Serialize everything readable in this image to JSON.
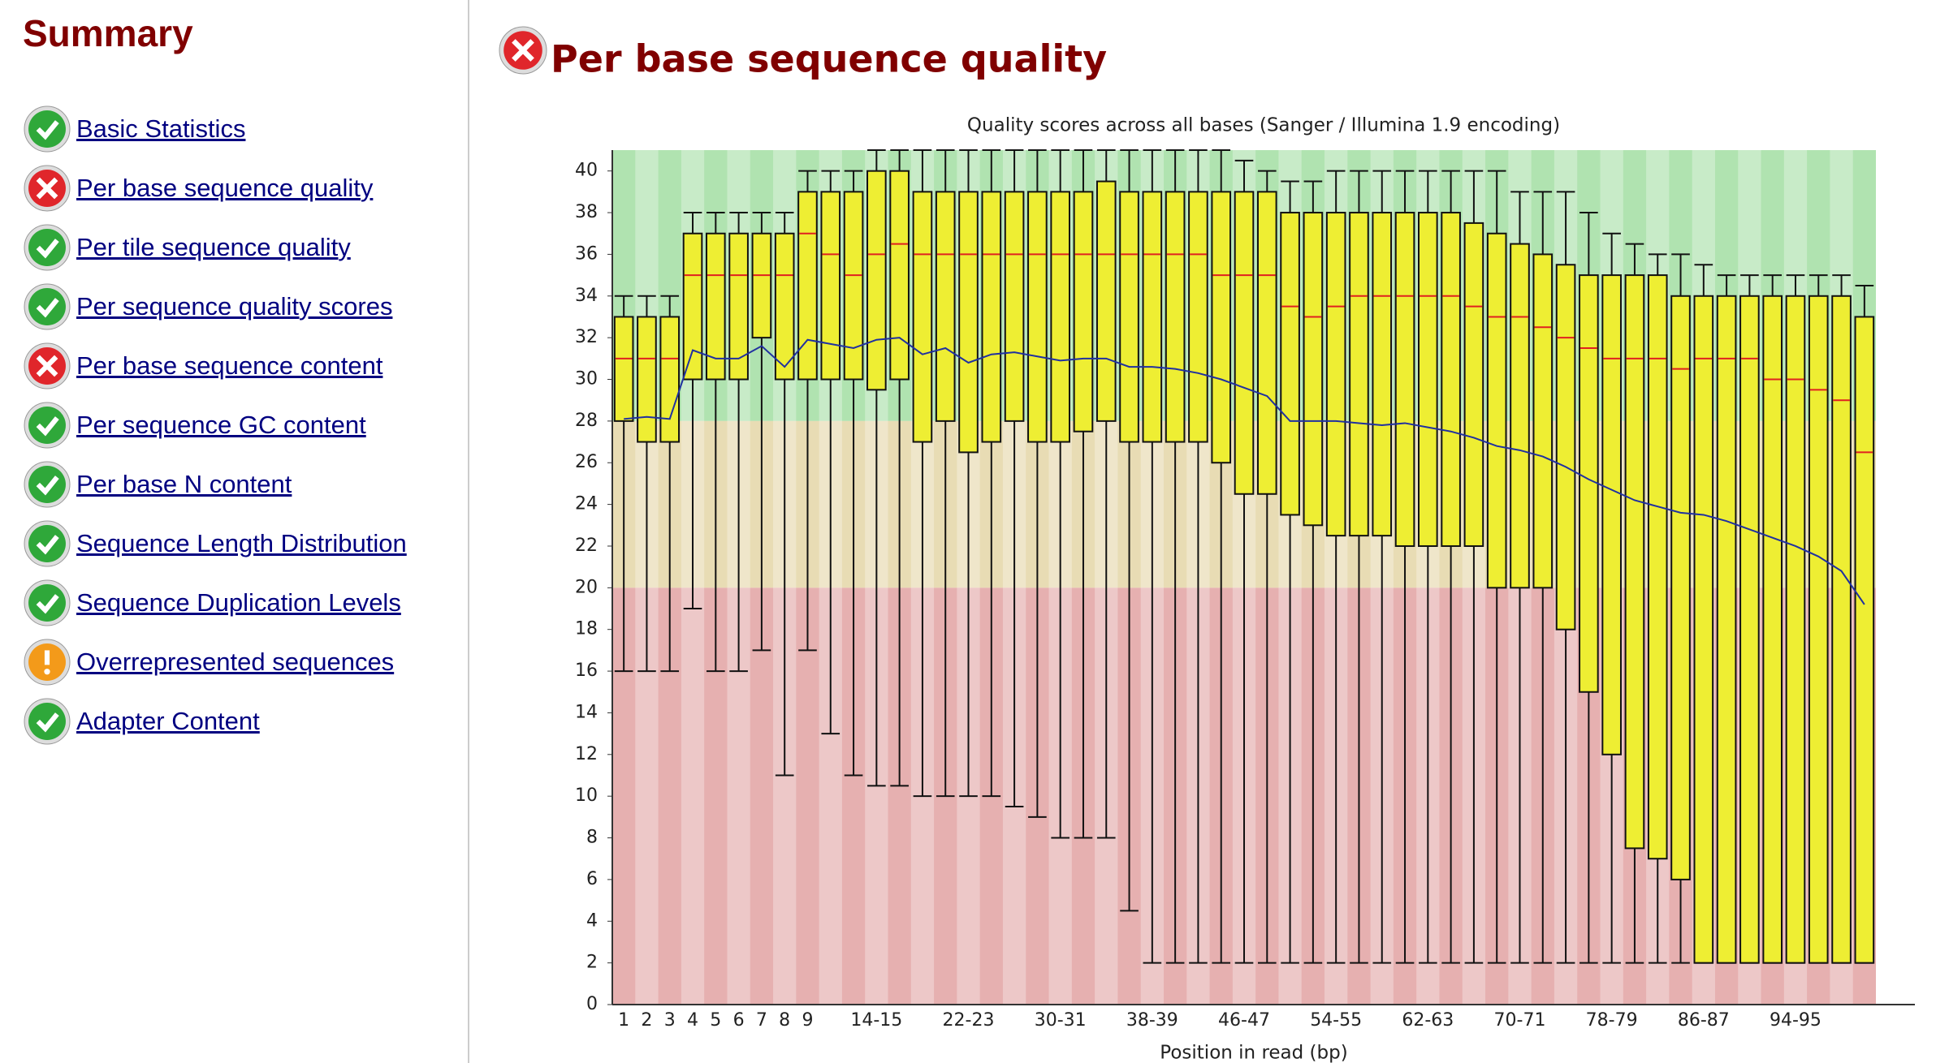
{
  "sidebar": {
    "title": "Summary",
    "items": [
      {
        "label": "Basic Statistics",
        "status": "pass"
      },
      {
        "label": "Per base sequence quality",
        "status": "fail"
      },
      {
        "label": "Per tile sequence quality",
        "status": "pass"
      },
      {
        "label": "Per sequence quality scores",
        "status": "pass"
      },
      {
        "label": "Per base sequence content",
        "status": "fail"
      },
      {
        "label": "Per sequence GC content",
        "status": "pass"
      },
      {
        "label": "Per base N content",
        "status": "pass"
      },
      {
        "label": "Sequence Length Distribution",
        "status": "pass"
      },
      {
        "label": "Sequence Duplication Levels",
        "status": "pass"
      },
      {
        "label": "Overrepresented sequences",
        "status": "warn"
      },
      {
        "label": "Adapter Content",
        "status": "pass"
      }
    ]
  },
  "header": {
    "title": "Per base sequence quality",
    "status": "fail"
  },
  "chart_data": {
    "type": "box",
    "title": "Quality scores across all bases (Sanger / Illumina 1.9 encoding)",
    "x_label": "Position in read (bp)",
    "categories": [
      "1",
      "2",
      "3",
      "4",
      "5",
      "6",
      "7",
      "8",
      "9",
      null,
      null,
      "14-15",
      null,
      null,
      null,
      "22-23",
      null,
      null,
      null,
      "30-31",
      null,
      null,
      null,
      "38-39",
      null,
      null,
      null,
      "46-47",
      null,
      null,
      null,
      "54-55",
      null,
      null,
      null,
      "62-63",
      null,
      null,
      null,
      "70-71",
      null,
      null,
      null,
      "78-79",
      null,
      null,
      null,
      "86-87",
      null,
      null,
      null,
      "94-95",
      null,
      null,
      null
    ],
    "low": [
      16,
      16,
      16,
      19,
      16,
      16,
      17,
      11,
      17,
      13,
      11,
      10.5,
      10.5,
      10,
      10,
      10,
      10,
      9.5,
      9,
      8,
      8,
      8,
      4.5,
      2,
      2,
      2,
      2,
      2,
      2,
      2,
      2,
      2,
      2,
      2,
      2,
      2,
      2,
      2,
      2,
      2,
      2,
      2,
      2,
      2,
      2,
      2,
      2,
      2,
      2,
      2,
      2,
      2,
      2,
      2,
      2
    ],
    "q1": [
      28,
      27,
      27,
      30,
      30,
      30,
      32,
      30,
      30,
      30,
      30,
      29.5,
      30,
      27,
      28,
      26.5,
      27,
      28,
      27,
      27,
      27.5,
      28,
      27,
      27,
      27,
      27,
      26,
      24.5,
      24.5,
      23.5,
      23,
      22.5,
      22.5,
      22.5,
      22,
      22,
      22,
      22,
      20,
      20,
      20,
      18,
      15,
      12,
      7.5,
      7,
      6,
      2,
      2,
      2,
      2,
      2,
      2,
      2,
      2
    ],
    "median": [
      31,
      31,
      31,
      35,
      35,
      35,
      35,
      35,
      37,
      36,
      35,
      36,
      36.5,
      36,
      36,
      36,
      36,
      36,
      36,
      36,
      36,
      36,
      36,
      36,
      36,
      36,
      35,
      35,
      35,
      33.5,
      33,
      33.5,
      34,
      34,
      34,
      34,
      34,
      33.5,
      33,
      33,
      32.5,
      32,
      31.5,
      31,
      31,
      31,
      30.5,
      31,
      31,
      31,
      30,
      30,
      29.5,
      29,
      26.5
    ],
    "q3": [
      33,
      33,
      33,
      37,
      37,
      37,
      37,
      37,
      39,
      39,
      39,
      40,
      40,
      39,
      39,
      39,
      39,
      39,
      39,
      39,
      39,
      39.5,
      39,
      39,
      39,
      39,
      39,
      39,
      39,
      38,
      38,
      38,
      38,
      38,
      38,
      38,
      38,
      37.5,
      37,
      36.5,
      36,
      35.5,
      35,
      35,
      35,
      35,
      34,
      34,
      34,
      34,
      34,
      34,
      34,
      34,
      33
    ],
    "high": [
      34,
      34,
      34,
      38,
      38,
      38,
      38,
      38,
      40,
      40,
      40,
      41,
      41,
      41,
      41,
      41,
      41,
      41,
      41,
      41,
      41,
      41,
      41,
      41,
      41,
      41,
      41,
      40.5,
      40,
      39.5,
      39.5,
      40,
      40,
      40,
      40,
      40,
      40,
      40,
      40,
      39,
      39,
      39,
      38,
      37,
      36.5,
      36,
      36,
      35.5,
      35,
      35,
      35,
      35,
      35,
      35,
      34.5
    ],
    "mean": [
      28.1,
      28.2,
      28.1,
      31.4,
      31,
      31,
      31.6,
      30.6,
      31.9,
      31.7,
      31.5,
      31.9,
      32,
      31.2,
      31.5,
      30.8,
      31.2,
      31.3,
      31.1,
      30.9,
      31,
      31,
      30.6,
      30.6,
      30.5,
      30.3,
      30,
      29.6,
      29.2,
      28,
      28,
      28,
      27.9,
      27.8,
      27.9,
      27.7,
      27.5,
      27.2,
      26.8,
      26.6,
      26.3,
      25.8,
      25.2,
      24.7,
      24.2,
      23.9,
      23.6,
      23.5,
      23.2,
      22.8,
      22.4,
      22,
      21.5,
      20.8,
      19.2
    ],
    "box_color": "#eeee33",
    "median_color": "#e02020",
    "mean_color": "#2030a0",
    "zones": [
      {
        "from": 28,
        "to": 41,
        "color": "#b0e3b0"
      },
      {
        "from": 20,
        "to": 28,
        "color": "#e8dcb4"
      },
      {
        "from": 0,
        "to": 20,
        "color": "#e6b0b0"
      }
    ],
    "ylim": [
      0,
      41
    ],
    "yticks": [
      0,
      2,
      4,
      6,
      8,
      10,
      12,
      14,
      16,
      18,
      20,
      22,
      24,
      26,
      28,
      30,
      32,
      34,
      36,
      38,
      40
    ]
  }
}
